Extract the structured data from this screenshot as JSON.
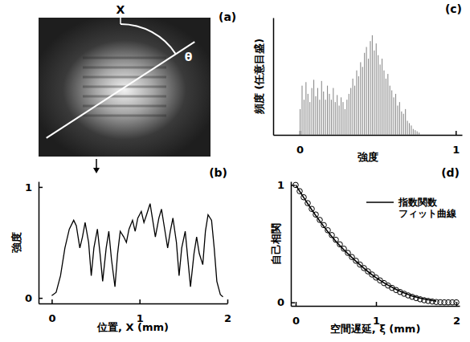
{
  "chart_data": [
    {
      "type": "image",
      "title": "(a)",
      "annotations": [
        "X",
        "θ"
      ]
    },
    {
      "type": "line",
      "title": "(b)",
      "xlabel": "位置, X (mm)",
      "ylabel": "強度",
      "color": "#000000",
      "x": [
        0,
        0.05,
        0.1,
        0.15,
        0.2,
        0.25,
        0.28,
        0.32,
        0.35,
        0.38,
        0.42,
        0.45,
        0.48,
        0.52,
        0.55,
        0.58,
        0.62,
        0.65,
        0.68,
        0.72,
        0.75,
        0.78,
        0.82,
        0.85,
        0.88,
        0.92,
        0.95,
        0.98,
        1.02,
        1.05,
        1.08,
        1.12,
        1.15,
        1.18,
        1.22,
        1.25,
        1.28,
        1.32,
        1.35,
        1.38,
        1.42,
        1.45,
        1.48,
        1.52,
        1.55,
        1.58,
        1.62,
        1.65,
        1.68,
        1.72,
        1.75,
        1.78,
        1.82,
        1.85,
        1.88,
        1.92,
        1.95
      ],
      "values": [
        0.02,
        0.05,
        0.2,
        0.45,
        0.62,
        0.7,
        0.65,
        0.45,
        0.55,
        0.68,
        0.5,
        0.2,
        0.45,
        0.62,
        0.4,
        0.15,
        0.45,
        0.6,
        0.35,
        0.1,
        0.4,
        0.6,
        0.55,
        0.5,
        0.62,
        0.7,
        0.6,
        0.72,
        0.78,
        0.68,
        0.75,
        0.85,
        0.7,
        0.55,
        0.72,
        0.8,
        0.65,
        0.45,
        0.6,
        0.72,
        0.5,
        0.2,
        0.45,
        0.6,
        0.35,
        0.1,
        0.4,
        0.55,
        0.4,
        0.3,
        0.6,
        0.75,
        0.7,
        0.45,
        0.15,
        0.03,
        0.01
      ],
      "xlim": [
        -0.15,
        2
      ],
      "ylim": [
        -0.05,
        1.05
      ],
      "xticks": [
        0,
        1,
        2
      ],
      "yticks": [
        0,
        1
      ]
    },
    {
      "type": "histogram",
      "title": "(c)",
      "xlabel": "強度",
      "ylabel": "頻度 (任意目盛)",
      "color": "#8c8c8c",
      "bins": [
        0,
        0.0125,
        0.025,
        0.0375,
        0.05,
        0.0625,
        0.075,
        0.0875,
        0.1,
        0.1125,
        0.125,
        0.1375,
        0.15,
        0.1625,
        0.175,
        0.1875,
        0.2,
        0.2125,
        0.225,
        0.2375,
        0.25,
        0.2625,
        0.275,
        0.2875,
        0.3,
        0.3125,
        0.325,
        0.3375,
        0.35,
        0.3625,
        0.375,
        0.3875,
        0.4,
        0.4125,
        0.425,
        0.4375,
        0.45,
        0.4625,
        0.475,
        0.4875,
        0.5,
        0.5125,
        0.525,
        0.5375,
        0.55,
        0.5625,
        0.575,
        0.5875,
        0.6,
        0.6125,
        0.625,
        0.6375,
        0.65,
        0.6625,
        0.675,
        0.6875,
        0.7,
        0.7125,
        0.725,
        0.7375,
        0.75,
        0.7625,
        0.775
      ],
      "counts": [
        0.22,
        0.42,
        0.3,
        0.45,
        0.35,
        0.28,
        0.4,
        0.47,
        0.33,
        0.4,
        0.3,
        0.46,
        0.37,
        0.3,
        0.42,
        0.35,
        0.3,
        0.4,
        0.28,
        0.34,
        0.25,
        0.32,
        0.28,
        0.22,
        0.3,
        0.35,
        0.4,
        0.48,
        0.42,
        0.55,
        0.5,
        0.62,
        0.58,
        0.7,
        0.75,
        0.65,
        0.8,
        0.85,
        0.72,
        0.78,
        0.68,
        0.6,
        0.65,
        0.55,
        0.48,
        0.52,
        0.42,
        0.38,
        0.32,
        0.35,
        0.25,
        0.28,
        0.2,
        0.18,
        0.22,
        0.12,
        0.1,
        0.08,
        0.05,
        0.04,
        0.03,
        0.02
      ],
      "xlim": [
        -0.17,
        1.04
      ],
      "ylim": [
        0,
        1
      ],
      "xticks": [
        0,
        1
      ],
      "tick_labels": "x"
    },
    {
      "type": "scatter",
      "title": "(d)",
      "xlabel": "空間遅延, ξ (mm)",
      "ylabel": "自己相関",
      "legend": "upper right",
      "xlim": [
        -0.06,
        2.04
      ],
      "ylim": [
        -0.03,
        1.03
      ],
      "xticks": [
        0,
        1,
        2
      ],
      "yticks": [
        0,
        1
      ],
      "series": [
        {
          "name": "指数関数\nフィット曲線",
          "type": "line",
          "color": "#000000",
          "line_style": "solid",
          "x": [
            0,
            0.25,
            0.5,
            0.75,
            1.0,
            1.25,
            1.5,
            1.75
          ],
          "values": [
            1.0,
            0.74,
            0.52,
            0.35,
            0.21,
            0.11,
            0.045,
            0.01
          ]
        },
        {
          "type": "scatter",
          "marker": "circle",
          "color": "#000000",
          "x": [
            0,
            0.05,
            0.1,
            0.15,
            0.2,
            0.25,
            0.3,
            0.35,
            0.4,
            0.45,
            0.5,
            0.55,
            0.6,
            0.65,
            0.7,
            0.75,
            0.8,
            0.85,
            0.9,
            0.95,
            1.0,
            1.05,
            1.1,
            1.15,
            1.2,
            1.25,
            1.3,
            1.35,
            1.4,
            1.45,
            1.5,
            1.55,
            1.6,
            1.65,
            1.7,
            1.75,
            1.8,
            1.85,
            1.9,
            1.95,
            2.0
          ],
          "values": [
            1.0,
            0.947,
            0.895,
            0.845,
            0.796,
            0.748,
            0.702,
            0.658,
            0.614,
            0.573,
            0.533,
            0.494,
            0.457,
            0.421,
            0.386,
            0.354,
            0.322,
            0.292,
            0.264,
            0.237,
            0.211,
            0.187,
            0.164,
            0.143,
            0.123,
            0.105,
            0.088,
            0.073,
            0.059,
            0.047,
            0.036,
            0.026,
            0.018,
            0.012,
            0.007,
            0.003,
            0.001,
            0,
            0,
            0,
            0
          ]
        }
      ]
    }
  ]
}
